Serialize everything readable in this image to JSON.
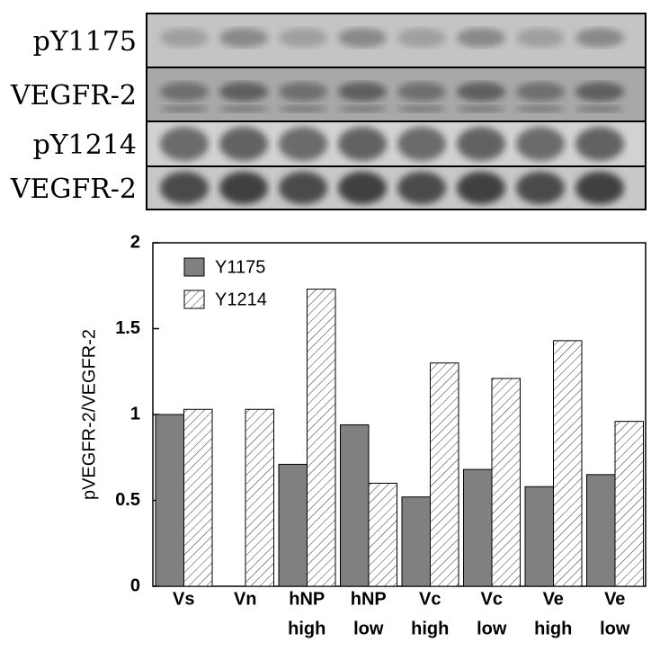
{
  "blot": {
    "rows": [
      "pY1175",
      "VEGFR-2",
      "pY1214",
      "VEGFR-2"
    ]
  },
  "chart_data": {
    "type": "bar",
    "categories": [
      [
        "Vs"
      ],
      [
        "Vn"
      ],
      [
        "hNP",
        "high"
      ],
      [
        "hNP",
        "low"
      ],
      [
        "Vc",
        "high"
      ],
      [
        "Vc",
        "low"
      ],
      [
        "Ve",
        "high"
      ],
      [
        "Ve",
        "low"
      ]
    ],
    "series": [
      {
        "name": "Y1175",
        "color": "#808080",
        "values": [
          1.0,
          0,
          0.71,
          0.94,
          0.52,
          0.68,
          0.58,
          0.65
        ]
      },
      {
        "name": "Y1214",
        "color": "#ffffff",
        "hatch": true,
        "values": [
          1.03,
          1.03,
          1.73,
          0.6,
          1.3,
          1.21,
          1.43,
          0.96
        ]
      }
    ],
    "y_label": "pVEGFR-2/VEGFR-2",
    "ylim": [
      0,
      2
    ],
    "yticks": [
      0,
      0.5,
      1,
      1.5,
      2
    ],
    "legend": "upper left"
  }
}
